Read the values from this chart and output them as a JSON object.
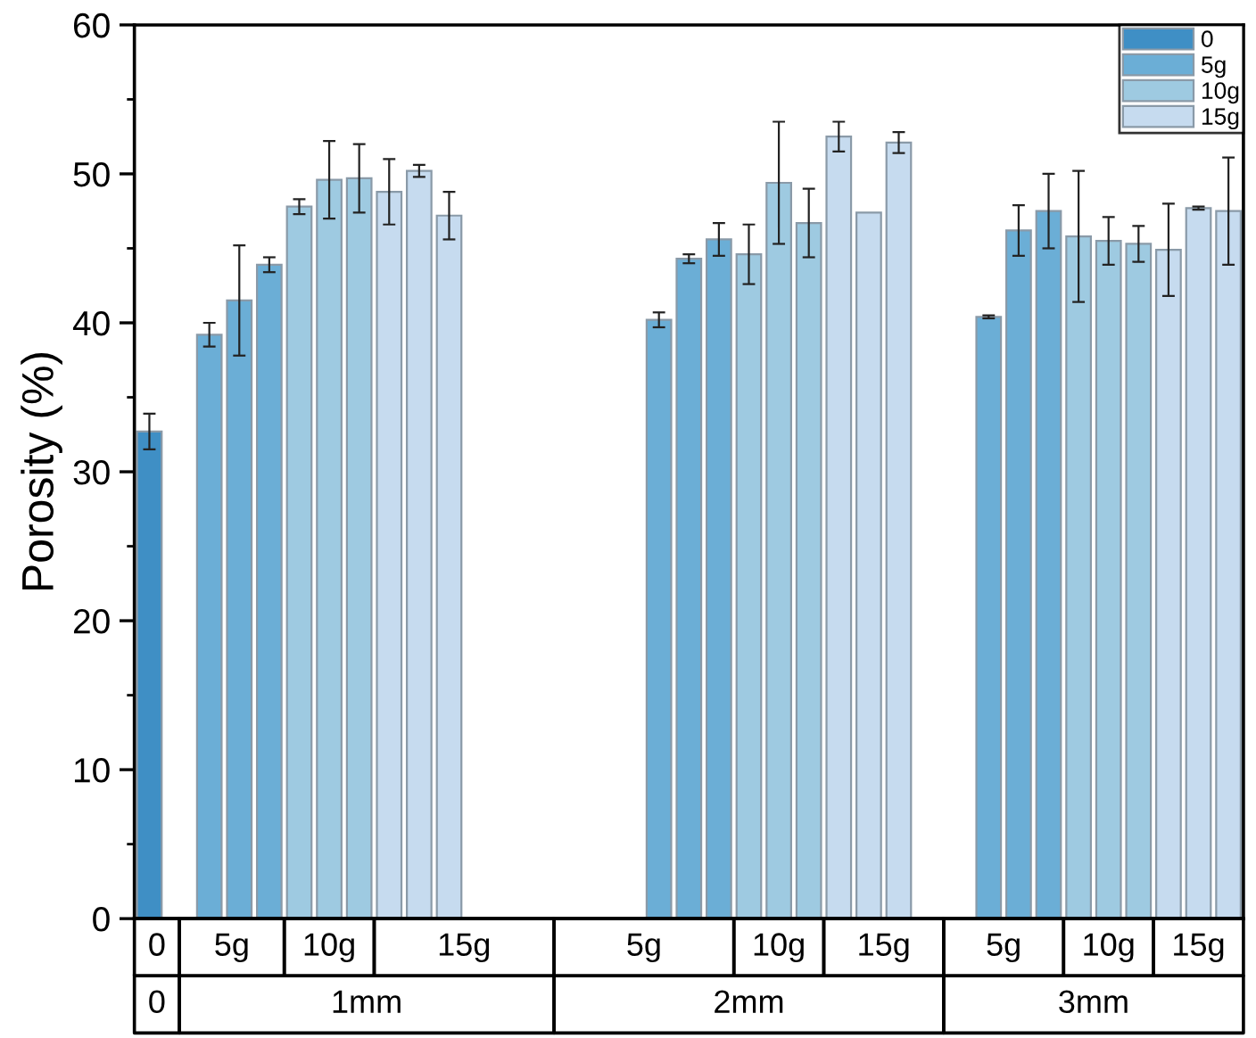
{
  "chart_data": {
    "type": "bar",
    "ylabel": "Porosity (%)",
    "categories": [
      null,
      null,
      null,
      null,
      null,
      null,
      null,
      null,
      null,
      null,
      null,
      null,
      null,
      null,
      null,
      null,
      null,
      null,
      null,
      null,
      null,
      null,
      null,
      null,
      null,
      null,
      null,
      null,
      null,
      null,
      null,
      null,
      null,
      null,
      null,
      null,
      null
    ],
    "series": [
      {
        "name": "0",
        "color": "#3f8fc5",
        "values": [
          32.7,
          null,
          null,
          null,
          null,
          null,
          null,
          null,
          null,
          null,
          null,
          null,
          null,
          null,
          null,
          null,
          null,
          null,
          null,
          null,
          null,
          null,
          null,
          null,
          null,
          null,
          null,
          null,
          null,
          null,
          null,
          null,
          null,
          null,
          null,
          null,
          null
        ],
        "errors": [
          1.2,
          null,
          null,
          null,
          null,
          null,
          null,
          null,
          null,
          null,
          null,
          null,
          null,
          null,
          null,
          null,
          null,
          null,
          null,
          null,
          null,
          null,
          null,
          null,
          null,
          null,
          null,
          null,
          null,
          null,
          null,
          null,
          null,
          null,
          null,
          null,
          null
        ]
      },
      {
        "name": "5g",
        "color": "#6baed6",
        "values": [
          null,
          null,
          39.2,
          41.5,
          43.9,
          null,
          null,
          null,
          null,
          null,
          null,
          null,
          null,
          null,
          null,
          null,
          null,
          40.2,
          44.3,
          45.6,
          null,
          null,
          null,
          null,
          null,
          null,
          null,
          null,
          40.4,
          46.2,
          47.5,
          null,
          null,
          null,
          null,
          null,
          null
        ],
        "errors": [
          null,
          null,
          0.8,
          3.7,
          0.5,
          null,
          null,
          null,
          null,
          null,
          null,
          null,
          null,
          null,
          null,
          null,
          null,
          0.5,
          0.3,
          1.1,
          null,
          null,
          null,
          null,
          null,
          null,
          null,
          null,
          0.1,
          1.7,
          2.5,
          null,
          null,
          null,
          null,
          null,
          null
        ]
      },
      {
        "name": "10g",
        "color": "#9ecae1",
        "values": [
          null,
          null,
          null,
          null,
          null,
          47.8,
          49.6,
          49.7,
          null,
          null,
          null,
          null,
          null,
          null,
          null,
          null,
          null,
          null,
          null,
          null,
          44.6,
          49.4,
          46.7,
          null,
          null,
          null,
          null,
          null,
          null,
          null,
          null,
          45.8,
          45.5,
          45.3,
          null,
          null,
          null
        ],
        "errors": [
          null,
          null,
          null,
          null,
          null,
          0.5,
          2.6,
          2.3,
          null,
          null,
          null,
          null,
          null,
          null,
          null,
          null,
          null,
          null,
          null,
          null,
          2.0,
          4.1,
          2.3,
          null,
          null,
          null,
          null,
          null,
          null,
          null,
          null,
          4.4,
          1.6,
          1.2,
          null,
          null,
          null
        ]
      },
      {
        "name": "15g",
        "color": "#c6dbef",
        "values": [
          null,
          null,
          null,
          null,
          null,
          null,
          null,
          null,
          48.8,
          50.2,
          47.2,
          null,
          null,
          null,
          null,
          null,
          null,
          null,
          null,
          null,
          null,
          null,
          null,
          52.5,
          47.4,
          52.1,
          null,
          null,
          null,
          null,
          null,
          null,
          null,
          null,
          44.9,
          47.7,
          47.5
        ],
        "errors": [
          null,
          null,
          null,
          null,
          null,
          null,
          null,
          null,
          2.2,
          0.4,
          1.6,
          null,
          null,
          null,
          null,
          null,
          null,
          null,
          null,
          null,
          null,
          null,
          null,
          1.0,
          null,
          0.7,
          null,
          null,
          null,
          null,
          null,
          null,
          null,
          null,
          3.1,
          0.1,
          3.6
        ]
      }
    ],
    "ylim": [
      0,
      60
    ],
    "yticks": [
      0,
      10,
      20,
      30,
      40,
      50,
      60
    ],
    "annotations": [
      "0",
      "5g",
      "10g",
      "15g",
      "5g",
      "10g",
      "15g",
      "5g",
      "10g",
      "15g",
      "0",
      "1mm",
      "2mm",
      "3mm"
    ],
    "legend": "top right",
    "grid": false
  }
}
